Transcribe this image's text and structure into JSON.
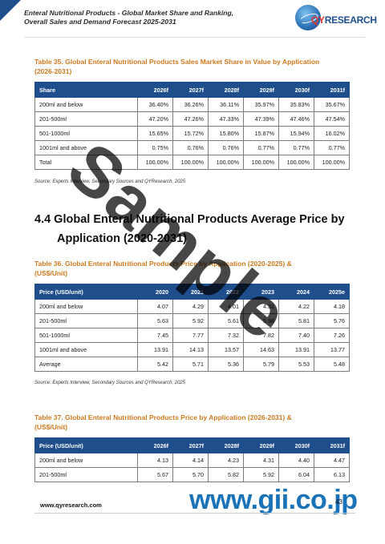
{
  "header": {
    "title_line1": "Enteral Nutritional Products - Global Market Share and Ranking,",
    "title_line2": "Overall Sales and Demand Forecast 2025-2031",
    "logo_q": "QY",
    "logo_rest": "RESEARCH"
  },
  "table35": {
    "caption_line1": "Table 35.   Global Enteral Nutritional Products Sales Market Share in Value by Application",
    "caption_line2": "(2026-2031)",
    "headers": [
      "Share",
      "2026f",
      "2027f",
      "2028f",
      "2029f",
      "2030f",
      "2031f"
    ],
    "rows": [
      [
        "200ml and below",
        "36.40%",
        "36.26%",
        "36.11%",
        "35.97%",
        "35.83%",
        "35.67%"
      ],
      [
        "201-500ml",
        "47.20%",
        "47.26%",
        "47.33%",
        "47.39%",
        "47.46%",
        "47.54%"
      ],
      [
        "501-1000ml",
        "15.65%",
        "15.72%",
        "15.80%",
        "15.87%",
        "15.94%",
        "16.02%"
      ],
      [
        "1001ml and above",
        "0.75%",
        "0.76%",
        "0.76%",
        "0.77%",
        "0.77%",
        "0.77%"
      ],
      [
        "Total",
        "100.00%",
        "100.00%",
        "100.00%",
        "100.00%",
        "100.00%",
        "100.00%"
      ]
    ],
    "source": "Source: Experts Interview, Secondary Sources and QYResearch, 2025"
  },
  "section": {
    "line1": "4.4 Global Enteral Nutritional Products Average Price by",
    "line2": "Application (2020-2031)"
  },
  "table36": {
    "caption_line1": "Table 36.   Global Enteral Nutritional Products Price by Application (2020-2025) &",
    "caption_line2": "(US$/Unit)",
    "headers": [
      "Price (USD/unit)",
      "2020",
      "2021",
      "2022",
      "2023",
      "2024",
      "2025e"
    ],
    "rows": [
      [
        "200ml and below",
        "4.07",
        "4.29",
        "4.01",
        "4.31",
        "4.22",
        "4.18"
      ],
      [
        "201-500ml",
        "5.63",
        "5.92",
        "5.61",
        "5.98",
        "5.81",
        "5.76"
      ],
      [
        "501-1000ml",
        "7.45",
        "7.77",
        "7.32",
        "7.82",
        "7.40",
        "7.26"
      ],
      [
        "1001ml and above",
        "13.91",
        "14.13",
        "13.57",
        "14.63",
        "13.91",
        "13.77"
      ],
      [
        "Average",
        "5.42",
        "5.71",
        "5.36",
        "5.79",
        "5.53",
        "5.48"
      ]
    ],
    "source": "Source: Experts Interview, Secondary Sources and QYResearch, 2025"
  },
  "table37": {
    "caption_line1": "Table 37.   Global Enteral Nutritional Products Price by Application (2026-2031) &",
    "caption_line2": "(US$/Unit)",
    "headers": [
      "Price (USD/unit)",
      "2026f",
      "2027f",
      "2028f",
      "2029f",
      "2030f",
      "2031f"
    ],
    "rows": [
      [
        "200ml and below",
        "4.13",
        "4.14",
        "4.23",
        "4.31",
        "4.40",
        "4.47"
      ],
      [
        "201-500ml",
        "5.67",
        "5.70",
        "5.82",
        "5.92",
        "6.04",
        "6.13"
      ]
    ]
  },
  "footer": {
    "url": "www.qyresearch.com",
    "page": "43",
    "gii": "www.gii.co.jp"
  },
  "watermark": "Sample",
  "colors": {
    "header_blue": "#1f4e8c",
    "caption_orange": "#cc7a21",
    "gii_blue": "#1a72b8"
  }
}
